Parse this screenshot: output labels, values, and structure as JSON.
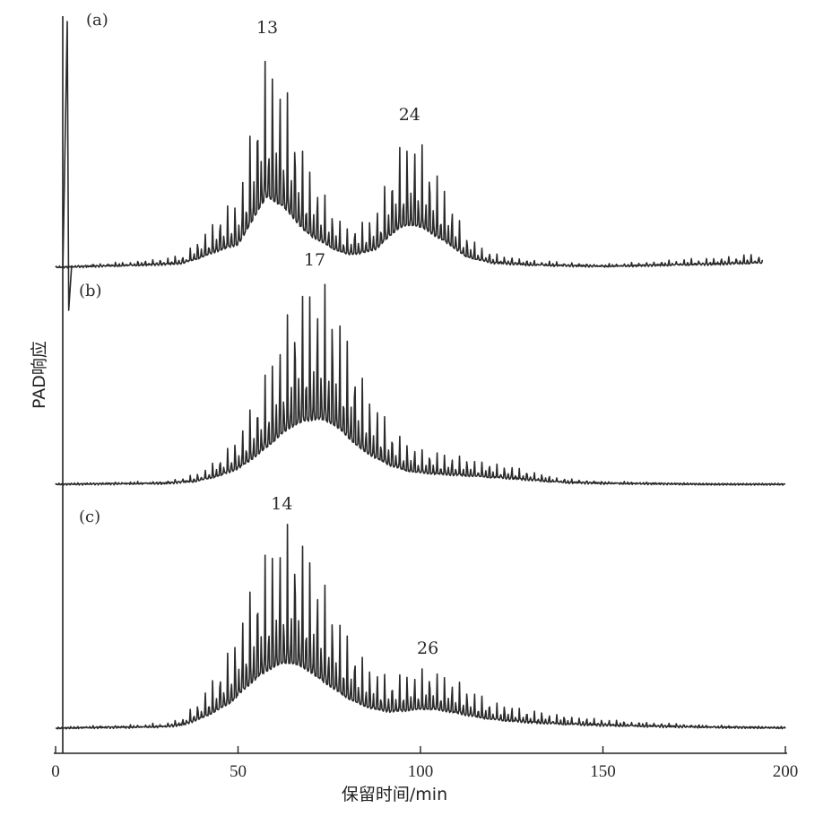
{
  "chart_data": {
    "type": "line",
    "xlabel": "保留时间/min",
    "ylabel": "PAD响应",
    "xlim": [
      0,
      200
    ],
    "xticks": [
      0,
      50,
      100,
      150,
      200
    ],
    "grid": false,
    "series": [
      {
        "panel_label": "(a)",
        "x": [
          0,
          10,
          20,
          30,
          35,
          40,
          45,
          50,
          52,
          54,
          56,
          58,
          60,
          62,
          64,
          66,
          68,
          70,
          72,
          74,
          76,
          78,
          80,
          84,
          88,
          90,
          92,
          94,
          96,
          98,
          100,
          102,
          104,
          106,
          108,
          110,
          112,
          116,
          120,
          130,
          140,
          150,
          160,
          170,
          180,
          190,
          194
        ],
        "y": [
          0,
          3,
          6,
          10,
          14,
          35,
          60,
          80,
          120,
          165,
          210,
          245,
          230,
          215,
          190,
          160,
          130,
          110,
          95,
          80,
          65,
          55,
          45,
          50,
          65,
          90,
          115,
          135,
          145,
          148,
          140,
          128,
          110,
          95,
          80,
          60,
          40,
          25,
          15,
          8,
          5,
          3,
          5,
          8,
          10,
          14,
          15
        ],
        "peak_annotations": [
          {
            "x": 58,
            "y": 245,
            "text": "13"
          },
          {
            "x": 97,
            "y": 148,
            "text": "24"
          }
        ]
      },
      {
        "panel_label": "(b)",
        "x": [
          0,
          10,
          20,
          30,
          38,
          42,
          46,
          50,
          54,
          58,
          62,
          64,
          66,
          68,
          70,
          72,
          74,
          76,
          78,
          80,
          84,
          88,
          92,
          96,
          100,
          105,
          110,
          115,
          120,
          125,
          130,
          135,
          140,
          150,
          160,
          170,
          180,
          190,
          200
        ],
        "y": [
          0,
          1,
          2,
          3,
          10,
          20,
          35,
          55,
          90,
          130,
          175,
          195,
          210,
          220,
          225,
          228,
          222,
          210,
          190,
          165,
          120,
          90,
          65,
          48,
          40,
          36,
          32,
          28,
          24,
          20,
          15,
          10,
          6,
          3,
          2,
          1,
          0,
          0,
          0
        ],
        "peak_annotations": [
          {
            "x": 71,
            "y": 228,
            "text": "17"
          }
        ]
      },
      {
        "panel_label": "(c)",
        "x": [
          0,
          10,
          20,
          30,
          35,
          40,
          44,
          48,
          52,
          56,
          60,
          62,
          64,
          66,
          68,
          70,
          72,
          76,
          80,
          84,
          88,
          92,
          96,
          100,
          102,
          104,
          108,
          112,
          116,
          120,
          130,
          140,
          150,
          160,
          170,
          180,
          190,
          200
        ],
        "y": [
          0,
          2,
          3,
          5,
          12,
          35,
          60,
          90,
          140,
          185,
          215,
          225,
          228,
          222,
          210,
          195,
          175,
          140,
          105,
          80,
          65,
          58,
          62,
          66,
          67,
          65,
          58,
          48,
          38,
          30,
          20,
          14,
          10,
          7,
          5,
          3,
          2,
          1
        ],
        "peak_annotations": [
          {
            "x": 62,
            "y": 228,
            "text": "14"
          },
          {
            "x": 102,
            "y": 67,
            "text": "26"
          }
        ]
      }
    ]
  }
}
